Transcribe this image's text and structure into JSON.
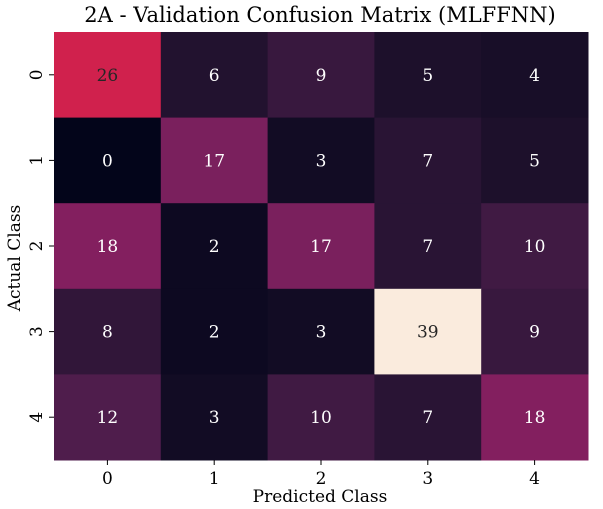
{
  "chart_data": {
    "type": "heatmap",
    "title": "2A - Validation Confusion Matrix (MLFFNN)",
    "xlabel": "Predicted Class",
    "ylabel": "Actual Class",
    "x_categories": [
      "0",
      "1",
      "2",
      "3",
      "4"
    ],
    "y_categories": [
      "0",
      "1",
      "2",
      "3",
      "4"
    ],
    "values": [
      [
        26,
        6,
        9,
        5,
        4
      ],
      [
        0,
        17,
        3,
        7,
        5
      ],
      [
        18,
        2,
        17,
        7,
        10
      ],
      [
        8,
        2,
        3,
        39,
        9
      ],
      [
        12,
        3,
        10,
        7,
        18
      ]
    ],
    "vmin": 0,
    "vmax": 39,
    "colormap": "rocket",
    "colorbar": false,
    "grid": false
  }
}
